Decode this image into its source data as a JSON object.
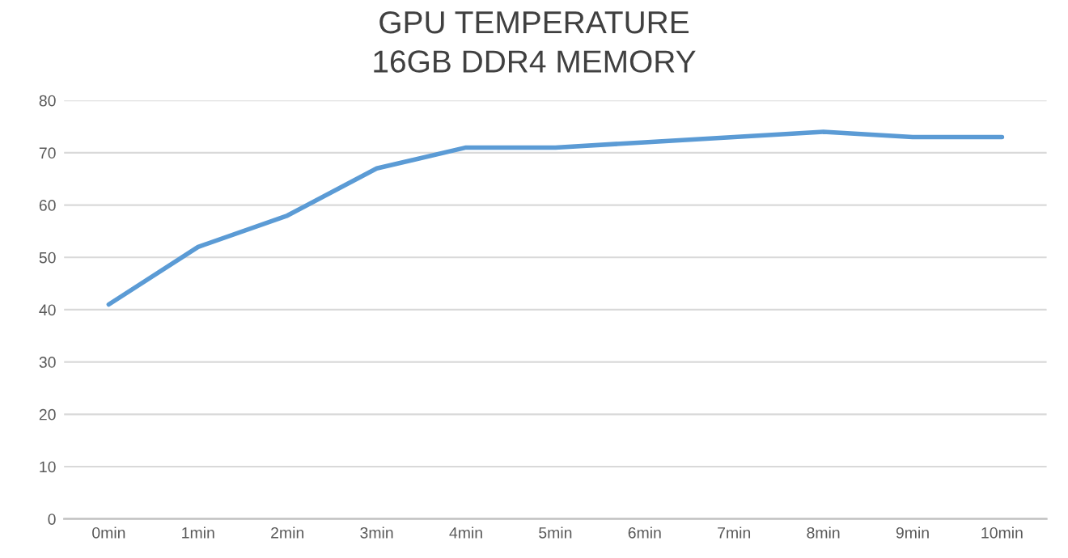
{
  "chart_data": {
    "type": "line",
    "title": "GPU TEMPERATURE",
    "subtitle": "16GB DDR4 MEMORY",
    "categories": [
      "0min",
      "1min",
      "2min",
      "3min",
      "4min",
      "5min",
      "6min",
      "7min",
      "8min",
      "9min",
      "10min"
    ],
    "series": [
      {
        "color": "#5b9bd5",
        "values": [
          41,
          52,
          58,
          67,
          71,
          71,
          72,
          73,
          74,
          73,
          73
        ]
      }
    ],
    "ylim": [
      0,
      80
    ],
    "yticks": [
      0,
      10,
      20,
      30,
      40,
      50,
      60,
      70,
      80
    ],
    "grid": "y",
    "legend": false,
    "marker": "none",
    "line_style": "solid"
  }
}
